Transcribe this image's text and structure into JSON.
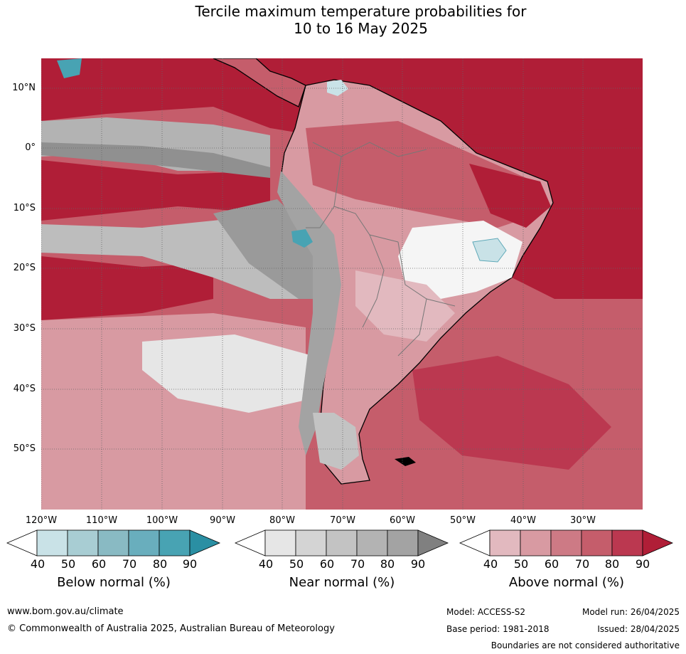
{
  "title": {
    "line1": "Tercile maximum temperature probabilities for",
    "line2": "10 to 16 May 2025"
  },
  "map": {
    "lat_labels": [
      "10°N",
      "0°",
      "10°S",
      "20°S",
      "30°S",
      "40°S",
      "50°S"
    ],
    "lon_labels": [
      "120°W",
      "110°W",
      "100°W",
      "90°W",
      "80°W",
      "70°W",
      "60°W",
      "50°W",
      "40°W",
      "30°W"
    ]
  },
  "colorbars": [
    {
      "title": "Below normal (%)",
      "ticks": [
        "40",
        "50",
        "60",
        "70",
        "80",
        "90"
      ],
      "colors": [
        "#ffffff",
        "#c9e2e7",
        "#a8cdd3",
        "#89bac3",
        "#69aebd",
        "#48a3b3",
        "#2a8fa3"
      ]
    },
    {
      "title": "Near normal (%)",
      "ticks": [
        "40",
        "50",
        "60",
        "70",
        "80",
        "90"
      ],
      "colors": [
        "#ffffff",
        "#e6e6e6",
        "#d4d4d4",
        "#c3c3c3",
        "#b3b3b3",
        "#a3a3a3",
        "#808080"
      ]
    },
    {
      "title": "Above normal (%)",
      "ticks": [
        "40",
        "50",
        "60",
        "70",
        "80",
        "90"
      ],
      "colors": [
        "#ffffff",
        "#e2b9bf",
        "#d89aa2",
        "#cd7a85",
        "#c55d6b",
        "#bb3850",
        "#b01e37"
      ]
    }
  ],
  "footer": {
    "website": "www.bom.gov.au/climate",
    "copyright": "© Commonwealth of Australia 2025, Australian Bureau of Meteorology",
    "model": "Model: ACCESS-S2",
    "model_run": "Model run: 26/04/2025",
    "base_period": "Base period: 1981-2018",
    "issued": "Issued: 28/04/2025",
    "disclaimer": "Boundaries are not considered authoritative"
  }
}
